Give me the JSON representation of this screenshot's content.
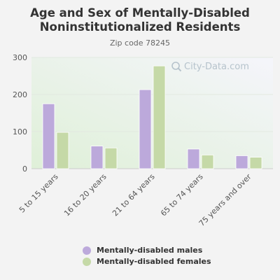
{
  "chart_data": {
    "type": "bar",
    "title": [
      "Age and Sex of Mentally-Disabled",
      "Noninstitutionalized Residents"
    ],
    "subtitle": "Zip code 78245",
    "categories": [
      "5 to 15 years",
      "16 to 20 years",
      "21 to 64 years",
      "65 to 74 years",
      "75 years and over"
    ],
    "series": [
      {
        "name": "Mentally-disabled males",
        "values": [
          175,
          61,
          213,
          53,
          35
        ],
        "color": "#bca9db"
      },
      {
        "name": "Mentally-disabled females",
        "values": [
          98,
          56,
          277,
          37,
          31
        ],
        "color": "#c5d9a7"
      }
    ],
    "yticks": [
      0,
      100,
      200,
      300
    ],
    "ylim": [
      0,
      300
    ],
    "grid": true,
    "legend_position": "bottom"
  },
  "watermark": {
    "text": "City-Data.com",
    "icon": "search-icon"
  },
  "colors": {
    "plot_bg_top": "#f5f5fb",
    "plot_bg_bottom": "#dff0d8",
    "title": "#333333"
  }
}
